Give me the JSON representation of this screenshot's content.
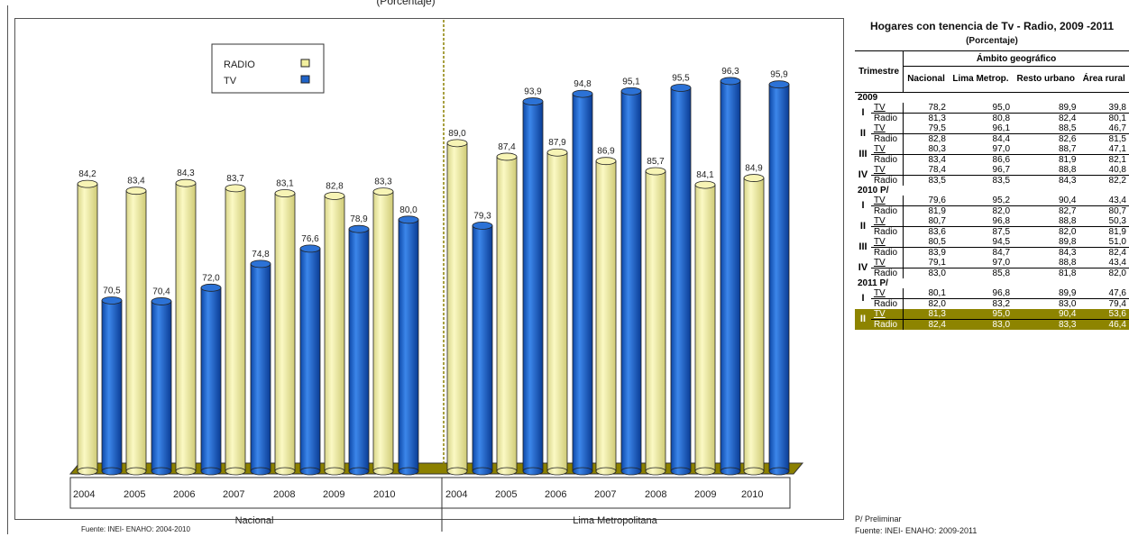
{
  "top_caption": "(Porcentaje)",
  "colors": {
    "radio": "#f2ef9e",
    "tv": "#1f63c8",
    "floor": "#8b8000"
  },
  "chart_data": {
    "type": "bar",
    "legend": [
      {
        "label": "RADIO",
        "color": "#f2ef9e"
      },
      {
        "label": "TV",
        "color": "#1f63c8"
      }
    ],
    "legend_position": "top-left",
    "groups": [
      {
        "name": "Nacional",
        "categories": [
          "2004",
          "2005",
          "2006",
          "2007",
          "2008",
          "2009",
          "2010"
        ],
        "series": [
          {
            "name": "RADIO",
            "values": [
              84.2,
              83.4,
              84.3,
              83.7,
              83.1,
              82.8,
              83.3
            ]
          },
          {
            "name": "TV",
            "values": [
              70.5,
              70.4,
              72.0,
              74.8,
              76.6,
              78.9,
              80.0
            ]
          }
        ]
      },
      {
        "name": "Lima Metropolitana",
        "categories": [
          "2004",
          "2005",
          "2006",
          "2007",
          "2008",
          "2009",
          "2010"
        ],
        "series": [
          {
            "name": "RADIO",
            "values": [
              89.0,
              87.4,
              87.9,
              86.9,
              85.7,
              84.1,
              84.9
            ]
          },
          {
            "name": "TV",
            "values": [
              79.3,
              93.9,
              94.8,
              95.1,
              95.5,
              96.3,
              95.9
            ]
          }
        ]
      }
    ],
    "value_labels": {
      "nacional_radio": [
        "84,2",
        "83,4",
        "84,3",
        "83,7",
        "83,1",
        "82,8",
        "83,3"
      ],
      "nacional_tv": [
        "70,5",
        "70,4",
        "72,0",
        "74,8",
        "76,6",
        "78,9",
        "80,0"
      ],
      "lima_radio": [
        "89,0",
        "87,4",
        "87,9",
        "86,9",
        "85,7",
        "84,1",
        "84,9"
      ],
      "lima_tv": [
        "79,3",
        "93,9",
        "94,8",
        "95,1",
        "95,5",
        "96,3",
        "95,9"
      ]
    },
    "source": "Fuente: INEI- ENAHO: 2004-2010"
  },
  "table": {
    "title": "Hogares con tenencia de Tv - Radio, 2009 -2011",
    "subtitle": "(Porcentaje)",
    "header_group": "Ámbito geográfico",
    "header_trimestre": "Trimestre",
    "columns": [
      "Nacional",
      "Lima Metrop.",
      "Resto urbano",
      "Área rural"
    ],
    "years": [
      {
        "year": "2009",
        "quarters": [
          {
            "q": "I",
            "tv": [
              "78,2",
              "95,0",
              "89,9",
              "39,8"
            ],
            "radio": [
              "81,3",
              "80,8",
              "82,4",
              "80,1"
            ]
          },
          {
            "q": "II",
            "tv": [
              "79,5",
              "96,1",
              "88,5",
              "46,7"
            ],
            "radio": [
              "82,8",
              "84,4",
              "82,6",
              "81,5"
            ]
          },
          {
            "q": "III",
            "tv": [
              "80,3",
              "97,0",
              "88,7",
              "47,1"
            ],
            "radio": [
              "83,4",
              "86,6",
              "81,9",
              "82,1"
            ]
          },
          {
            "q": "IV",
            "tv": [
              "78,4",
              "96,7",
              "88,8",
              "40,8"
            ],
            "radio": [
              "83,5",
              "83,5",
              "84,3",
              "82,2"
            ]
          }
        ]
      },
      {
        "year": "2010 P/",
        "quarters": [
          {
            "q": "I",
            "tv": [
              "79,6",
              "95,2",
              "90,4",
              "43,4"
            ],
            "radio": [
              "81,9",
              "82,0",
              "82,7",
              "80,7"
            ]
          },
          {
            "q": "II",
            "tv": [
              "80,7",
              "96,8",
              "88,8",
              "50,3"
            ],
            "radio": [
              "83,6",
              "87,5",
              "82,0",
              "81,9"
            ]
          },
          {
            "q": "III",
            "tv": [
              "80,5",
              "94,5",
              "89,8",
              "51,0"
            ],
            "radio": [
              "83,9",
              "84,7",
              "84,3",
              "82,4"
            ]
          },
          {
            "q": "IV",
            "tv": [
              "79,1",
              "97,0",
              "88,8",
              "43,4"
            ],
            "radio": [
              "83,0",
              "85,8",
              "81,8",
              "82,0"
            ]
          }
        ]
      },
      {
        "year": "2011 P/",
        "quarters": [
          {
            "q": "I",
            "tv": [
              "80,1",
              "96,8",
              "89,9",
              "47,6"
            ],
            "radio": [
              "82,0",
              "83,2",
              "83,0",
              "79,4"
            ]
          },
          {
            "q": "II",
            "tv": [
              "81,3",
              "95,0",
              "90,4",
              "53,6"
            ],
            "radio": [
              "82,4",
              "83,0",
              "83,3",
              "46,4"
            ],
            "highlight": true
          }
        ]
      }
    ],
    "tv_label": "TV",
    "radio_label": "Radio",
    "note": "P/ Preliminar",
    "source": "Fuente: INEI- ENAHO: 2009-2011"
  }
}
